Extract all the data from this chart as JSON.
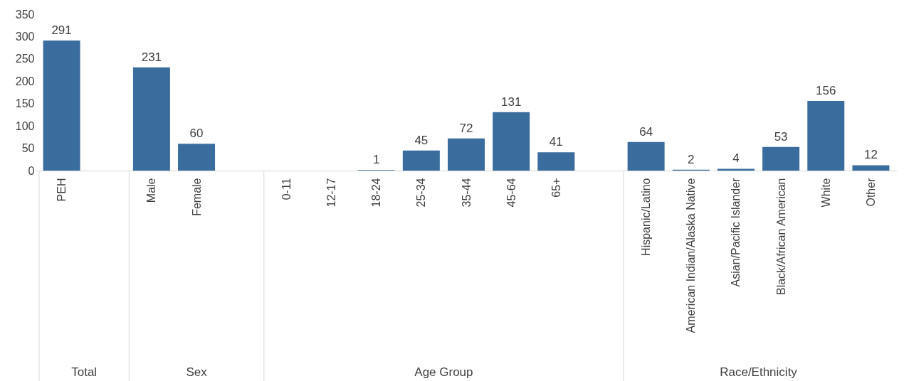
{
  "chart_data": {
    "type": "bar",
    "categories": [
      "PEH",
      null,
      "Male",
      "Female",
      null,
      "0-11",
      "12-17",
      "18-24",
      "25-34",
      "35-44",
      "45-64",
      "65+",
      null,
      "Hispanic/Latino",
      "American Indian/Alaska Native",
      "Asian/Pacific Islander",
      "Black/African American",
      "White",
      "Other"
    ],
    "values": [
      291,
      null,
      231,
      60,
      null,
      null,
      null,
      1,
      45,
      72,
      131,
      41,
      null,
      64,
      2,
      4,
      53,
      156,
      12
    ],
    "color": "#3a6d9e",
    "ylim": [
      0,
      350
    ],
    "yticks": [
      0,
      50,
      100,
      150,
      200,
      250,
      300,
      350
    ],
    "data_labels": true,
    "grid": false,
    "annotations": [
      "Total",
      "Sex",
      "Age Group",
      "Race/Ethnicity"
    ]
  }
}
